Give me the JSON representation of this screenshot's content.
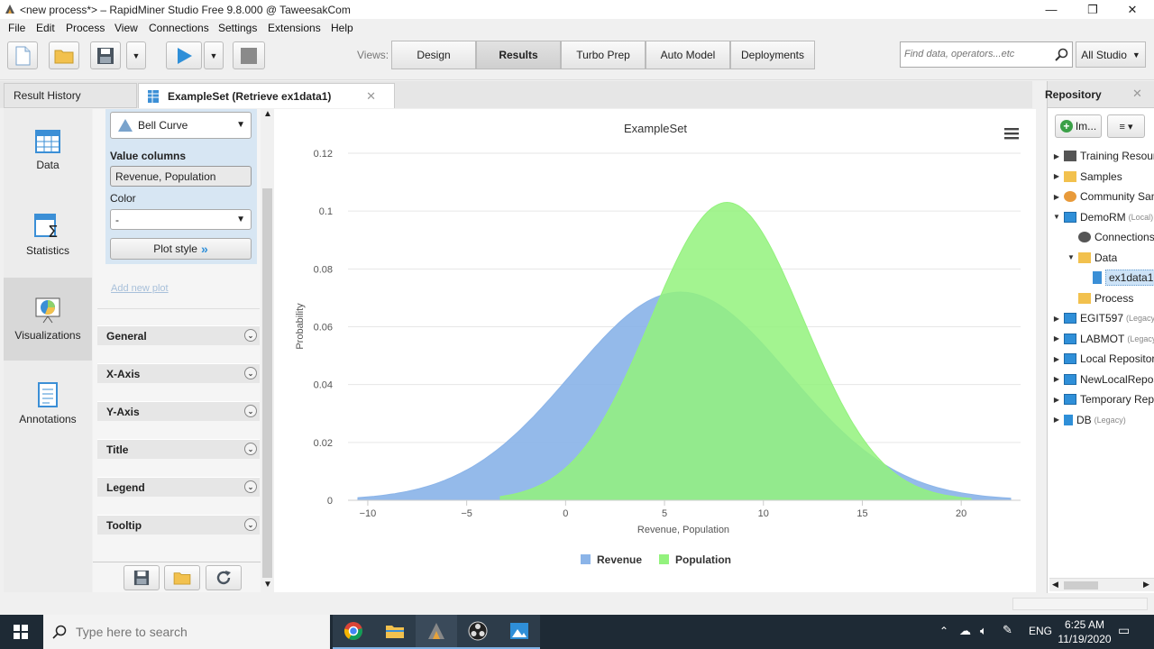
{
  "window": {
    "title": "<new process*> – RapidMiner Studio Free 9.8.000 @ TaweesakCom",
    "minimize": "—",
    "maximize": "❐",
    "close": "✕"
  },
  "menu": [
    "File",
    "Edit",
    "Process",
    "View",
    "Connections",
    "Settings",
    "Extensions",
    "Help"
  ],
  "toolbar": {
    "views_label": "Views:",
    "views": [
      "Design",
      "Results",
      "Turbo Prep",
      "Auto Model",
      "Deployments"
    ],
    "active_view": "Results",
    "search_placeholder": "Find data, operators...etc",
    "scope": "All Studio"
  },
  "tabs": {
    "result_history": "Result History",
    "exampleset": "ExampleSet (Retrieve ex1data1)"
  },
  "left_nav": [
    "Data",
    "Statistics",
    "Visualizations",
    "Annotations"
  ],
  "config": {
    "plot_type": "Bell Curve",
    "value_columns_label": "Value columns",
    "value_columns": "Revenue, Population",
    "color_label": "Color",
    "color_value": "-",
    "plot_style": "Plot style",
    "add_new_plot": "Add new plot",
    "sections": [
      "General",
      "X-Axis",
      "Y-Axis",
      "Title",
      "Legend",
      "Tooltip"
    ]
  },
  "chart_data": {
    "type": "area",
    "title": "ExampleSet",
    "xlabel": "Revenue, Population",
    "ylabel": "Probability",
    "xlim": [
      -11,
      23
    ],
    "ylim": [
      0,
      0.12
    ],
    "xticks": [
      "−10",
      "−5",
      "0",
      "5",
      "10",
      "15",
      "20"
    ],
    "yticks": [
      "0",
      "0.02",
      "0.04",
      "0.06",
      "0.08",
      "0.1",
      "0.12"
    ],
    "grid": true,
    "legend_position": "bottom",
    "series": [
      {
        "name": "Revenue",
        "color": "#8bb4e8",
        "mean": 5.8,
        "sd": 5.5,
        "x_range": [
          -10.5,
          22.5
        ],
        "peak": 0.072
      },
      {
        "name": "Population",
        "color": "#93f27d",
        "mean": 8.16,
        "sd": 3.87,
        "x_range": [
          -3.3,
          20.5
        ],
        "peak": 0.103
      }
    ]
  },
  "repository": {
    "title": "Repository",
    "import_button": "Im...",
    "items": [
      {
        "label": "Training Resources",
        "level": 0,
        "arrow": "▶",
        "legacy": ""
      },
      {
        "label": "Samples",
        "level": 0,
        "arrow": "▶",
        "legacy": ""
      },
      {
        "label": "Community Samples",
        "level": 0,
        "arrow": "▶",
        "legacy": ""
      },
      {
        "label": "DemoRM",
        "level": 0,
        "arrow": "▼",
        "legacy": "(Local)"
      },
      {
        "label": "Connections",
        "level": 1,
        "arrow": "",
        "legacy": ""
      },
      {
        "label": "Data",
        "level": 1,
        "arrow": "▼",
        "legacy": ""
      },
      {
        "label": "ex1data1",
        "level": 2,
        "arrow": "",
        "legacy": ""
      },
      {
        "label": "Process",
        "level": 1,
        "arrow": "",
        "legacy": ""
      },
      {
        "label": "EGIT597",
        "level": 0,
        "arrow": "▶",
        "legacy": "(Legacy)"
      },
      {
        "label": "LABMOT",
        "level": 0,
        "arrow": "▶",
        "legacy": "(Legacy)"
      },
      {
        "label": "Local Repository",
        "level": 0,
        "arrow": "▶",
        "legacy": ""
      },
      {
        "label": "NewLocalRepository",
        "level": 0,
        "arrow": "▶",
        "legacy": ""
      },
      {
        "label": "Temporary Repository",
        "level": 0,
        "arrow": "▶",
        "legacy": ""
      },
      {
        "label": "DB",
        "level": 0,
        "arrow": "▶",
        "legacy": "(Legacy)"
      }
    ]
  },
  "taskbar": {
    "search_placeholder": "Type here to search",
    "lang": "ENG",
    "time": "6:25 AM",
    "date": "11/19/2020"
  }
}
